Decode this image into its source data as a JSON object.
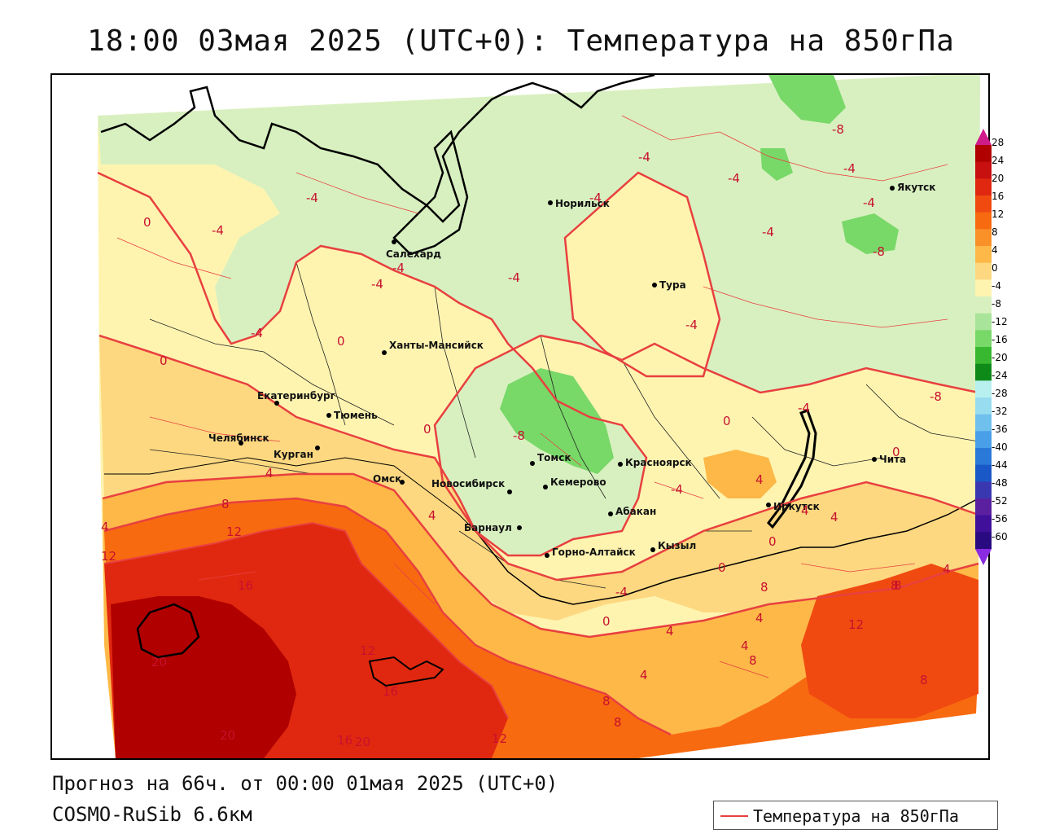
{
  "title": "18:00 03мая 2025 (UTC+0): Температура на 850гПа",
  "forecast_line": "Прогноз на 66ч. от 00:00 01мая 2025 (UTC+0)",
  "model_line": "COSMO-RuSib 6.6км",
  "legend": {
    "label": "Температура на 850гПа",
    "color": "#e84040"
  },
  "colorbar": {
    "labels": [
      "28",
      "24",
      "20",
      "16",
      "12",
      "8",
      "4",
      "0",
      "-4",
      "-8",
      "-12",
      "-16",
      "-20",
      "-24",
      "-28",
      "-32",
      "-36",
      "-40",
      "-44",
      "-48",
      "-52",
      "-56",
      "-60"
    ],
    "colors": [
      "#b00000",
      "#c81010",
      "#e02810",
      "#f04a10",
      "#f86a10",
      "#fa9028",
      "#fdb848",
      "#fdd880",
      "#fef4b0",
      "#d8f0c0",
      "#a8e49a",
      "#78d868",
      "#38b830",
      "#0e8a18",
      "#b8f0f0",
      "#98dcf0",
      "#70c0ee",
      "#4aa0e8",
      "#2a78d8",
      "#1a58c8",
      "#3a38b0",
      "#5a20a0",
      "#40109a",
      "#2a0a80"
    ]
  },
  "cities": [
    {
      "name": "Салехард"
    },
    {
      "name": "Норильск"
    },
    {
      "name": "Тура"
    },
    {
      "name": "Якутск"
    },
    {
      "name": "Ханты-Мансийск"
    },
    {
      "name": "Екатеринбург"
    },
    {
      "name": "Тюмень"
    },
    {
      "name": "Челябинск"
    },
    {
      "name": "Курган"
    },
    {
      "name": "Омск"
    },
    {
      "name": "Новосибирск"
    },
    {
      "name": "Томск"
    },
    {
      "name": "Кемерово"
    },
    {
      "name": "Красноярск"
    },
    {
      "name": "Барнаул"
    },
    {
      "name": "Абакан"
    },
    {
      "name": "Горно-Алтайск"
    },
    {
      "name": "Кызыл"
    },
    {
      "name": "Иркутск"
    },
    {
      "name": "Чита"
    }
  ],
  "isotherm_labels": [
    "-8",
    "-4",
    "-4",
    "-4",
    "-8",
    "-4",
    "-4",
    "-8",
    "-4",
    "-4",
    "-4",
    "0",
    "-4",
    "-4",
    "-4",
    "-4",
    "0",
    "0",
    "-4",
    "-4",
    "0",
    "-8",
    "0",
    "-4",
    "0",
    "4",
    "8",
    "12",
    "4",
    "4",
    "0",
    "-4",
    "4",
    "4",
    "0",
    "4",
    "8",
    "8",
    "16",
    "12",
    "16",
    "20",
    "20",
    "16",
    "20",
    "12",
    "8",
    "8",
    "4",
    "0",
    "4",
    "4",
    "8",
    "12",
    "8",
    "4",
    "12",
    "8",
    "4"
  ]
}
